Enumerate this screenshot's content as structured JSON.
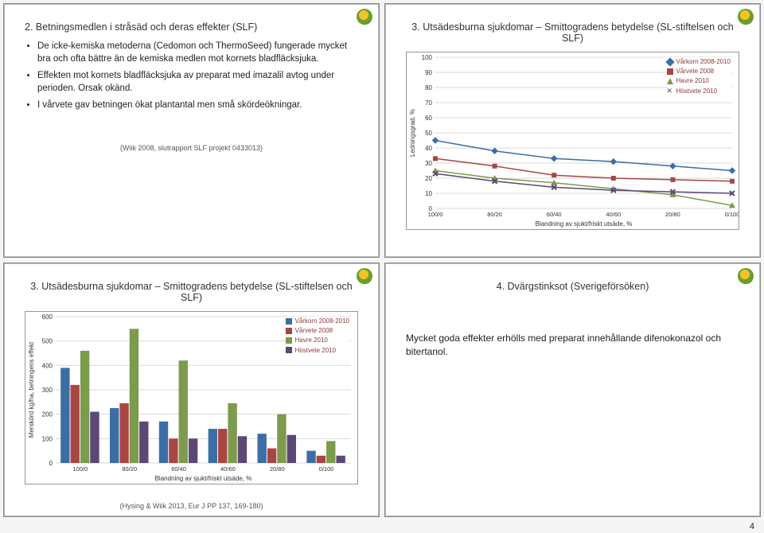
{
  "page_number": "4",
  "slides": {
    "topLeft": {
      "title": "2. Betningsmedlen i stråsäd och deras effekter (SLF)",
      "bullets": [
        "De icke-kemiska metoderna (Cedomon och ThermoSeed) fungerade mycket bra och ofta bättre än de kemiska medlen mot kornets bladfläcksjuka.",
        "Effekten mot kornets bladfläcksjuka av preparat med imazalil avtog under perioden. Orsak okänd.",
        "I vårvete gav betningen ökat plantantal men små skördeökningar."
      ],
      "cite": "(Wiik 2008, slutrapport SLF projekt 0433013)"
    },
    "topRight": {
      "title": "3. Utsädesburna sjukdomar – Smittogradens betydelse (SL-stiftelsen och SLF)",
      "chart": {
        "type": "line",
        "categories": [
          "100/0",
          "80/20",
          "60/40",
          "40/60",
          "20/80",
          "0/100"
        ],
        "xlabel": "Blandning av sjukt/friskt utsäde, %",
        "ylabel": "Ledningsgrad, %",
        "ylim": [
          0,
          100
        ],
        "ytick_step": 10,
        "background_color": "#ffffff",
        "grid_color": "#d9d9d9",
        "series": [
          {
            "name": "Vårkorn 2008-2010",
            "color": "#3b6ea5",
            "marker": "diamond",
            "values": [
              45,
              38,
              33,
              31,
              28,
              25
            ]
          },
          {
            "name": "Vårvete 2008",
            "color": "#a94643",
            "marker": "square",
            "values": [
              33,
              28,
              22,
              20,
              19,
              18
            ]
          },
          {
            "name": "Havre 2010",
            "color": "#7c9b4c",
            "marker": "triangle",
            "values": [
              25,
              20,
              17,
              13,
              9,
              2
            ]
          },
          {
            "name": "Höstvete 2010",
            "color": "#5c4776",
            "marker": "cross",
            "values": [
              23,
              18,
              14,
              12,
              11,
              10
            ]
          }
        ],
        "legend_pos": "top-right",
        "label_fontsize": 8
      }
    },
    "bottomLeft": {
      "title": "3. Utsädesburna sjukdomar – Smittogradens betydelse (SL-stiftelsen och SLF)",
      "chart": {
        "type": "bar",
        "categories": [
          "100/0",
          "80/20",
          "60/40",
          "40/60",
          "20/80",
          "0/100"
        ],
        "xlabel": "Blandning av sjukt/friskt utsäde, %",
        "ylabel": "Merskörd kg/ha, betningens effekt",
        "ylim": [
          0,
          600
        ],
        "ytick_step": 100,
        "background_color": "#ffffff",
        "grid_color": "#d9d9d9",
        "bar_width": 0.8,
        "series": [
          {
            "name": "Vårkorn 2008-2010",
            "color": "#3b6ea5",
            "values": [
              390,
              225,
              170,
              140,
              120,
              50
            ]
          },
          {
            "name": "Vårvete 2008",
            "color": "#a94643",
            "values": [
              320,
              245,
              100,
              140,
              60,
              30
            ]
          },
          {
            "name": "Havre 2010",
            "color": "#7c9b4c",
            "values": [
              460,
              550,
              420,
              245,
              200,
              90
            ]
          },
          {
            "name": "Höstvete 2010",
            "color": "#5c4776",
            "values": [
              210,
              170,
              100,
              110,
              115,
              30
            ]
          }
        ],
        "legend_pos": "top-right",
        "label_fontsize": 8
      },
      "cite_bottom": "(Hysing & Wiik 2013, Eur J PP 137, 169-180)"
    },
    "bottomRight": {
      "title": "4. Dvärgstinksot (Sverigeförsöken)",
      "body": "Mycket goda effekter erhölls med preparat innehållande difenokonazol och bitertanol."
    }
  }
}
